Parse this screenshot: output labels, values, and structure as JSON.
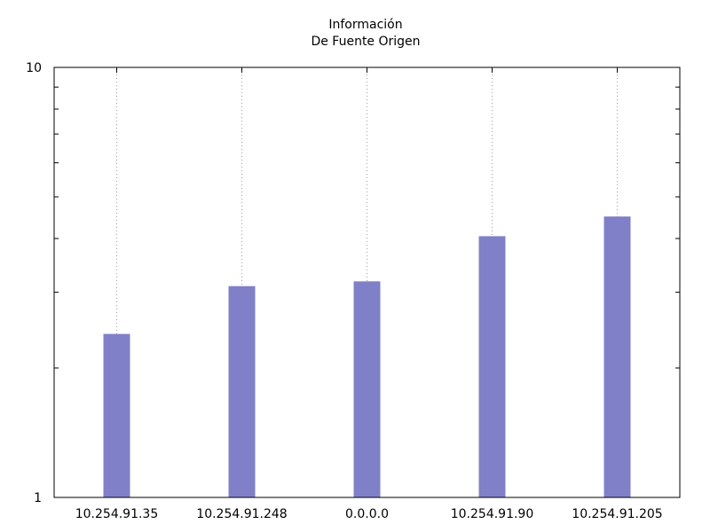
{
  "chart_data": {
    "type": "bar",
    "title": "Información",
    "subtitle": "De Fuente Origen",
    "xlabel": "",
    "ylabel": "",
    "yscale": "log",
    "ylim": [
      1,
      10
    ],
    "ytick_labels": [
      "1",
      "10"
    ],
    "grid": "vertical-dotted",
    "categories": [
      "10.254.91.35",
      "10.254.91.248",
      "0.0.0.0",
      "10.254.91.90",
      "10.254.91.205"
    ],
    "values": [
      2.4,
      3.1,
      3.18,
      4.05,
      4.5
    ],
    "bar_color": "#8080c8"
  }
}
